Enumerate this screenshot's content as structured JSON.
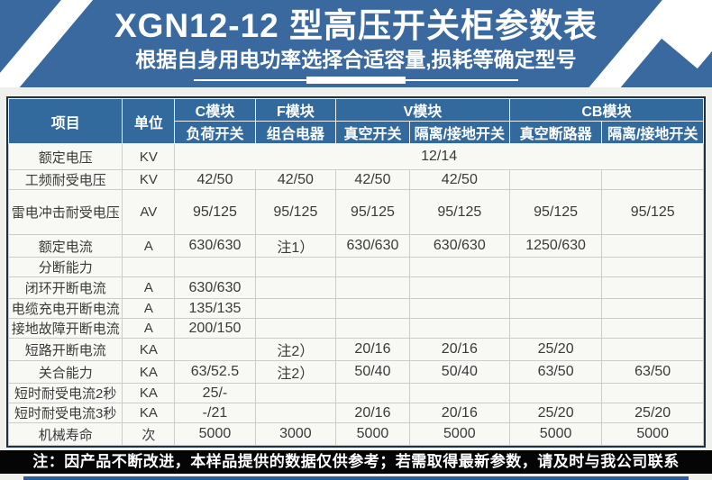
{
  "banner": {
    "title": "XGN12-12 型高压开关柜参数表",
    "subtitle": "根据自身用电功率选择合适容量,损耗等确定型号"
  },
  "table": {
    "header": {
      "item": "项目",
      "unit": "单位",
      "groups": [
        {
          "name": "C模块",
          "span": 1
        },
        {
          "name": "F模块",
          "span": 1
        },
        {
          "name": "V模块",
          "span": 2
        },
        {
          "name": "CB模块",
          "span": 2
        }
      ],
      "subcols": [
        "负荷开关",
        "组合电器",
        "真空开关",
        "隔离/接地开关",
        "真空断路器",
        "隔离/接地开关"
      ]
    },
    "rows": [
      {
        "label": "额定电压",
        "unit": "KV",
        "merged": "12/14"
      },
      {
        "label": "工频耐受电压",
        "unit": "KV",
        "values": [
          "42/50",
          "42/50",
          "42/50",
          "42/50",
          "",
          ""
        ]
      },
      {
        "label": "雷电冲击耐受电压",
        "unit": "AV",
        "values": [
          "95/125",
          "95/125",
          "95/125",
          "95/125",
          "95/125",
          "95/125"
        ]
      },
      {
        "label": "额定电流",
        "unit": "A",
        "values": [
          "630/630",
          "注1）",
          "630/630",
          "630/630",
          "1250/630",
          ""
        ]
      },
      {
        "label": "分断能力",
        "unit": "",
        "values": [
          "",
          "",
          "",
          "",
          "",
          ""
        ]
      },
      {
        "label": "闭环开断电流",
        "unit": "A",
        "values": [
          "630/630",
          "",
          "",
          "",
          "",
          ""
        ]
      },
      {
        "label": "电缆充电开断电流",
        "unit": "A",
        "values": [
          "135/135",
          "",
          "",
          "",
          "",
          ""
        ]
      },
      {
        "label": "接地故障开断电流",
        "unit": "A",
        "values": [
          "200/150",
          "",
          "",
          "",
          "",
          ""
        ]
      },
      {
        "label": "短路开断电流",
        "unit": "KA",
        "values": [
          "",
          "注2）",
          "20/16",
          "20/16",
          "25/20",
          ""
        ]
      },
      {
        "label": "关合能力",
        "unit": "KA",
        "values": [
          "63/52.5",
          "注2）",
          "50/40",
          "50/40",
          "63/50",
          "63/50"
        ]
      },
      {
        "label": "短时耐受电流2秒",
        "unit": "KA",
        "values": [
          "25/-",
          "",
          "",
          "",
          "",
          ""
        ]
      },
      {
        "label": "短时耐受电流3秒",
        "unit": "KA",
        "values": [
          "-/21",
          "",
          "20/16",
          "20/16",
          "25/20",
          "25/20"
        ]
      },
      {
        "label": "机械寿命",
        "unit": "次",
        "values": [
          "5000",
          "3000",
          "5000",
          "5000",
          "5000",
          "5000"
        ]
      }
    ]
  },
  "footer": {
    "note": "注：因产品不断改进，本样品提供的数据仅供参考；若需取得最新参数，请及时与我公司联系"
  },
  "colors": {
    "banner_blue": "#39699f",
    "header_blue": "#336a9e",
    "footer_black": "#050505",
    "bottom_line_blue": "#2b5d9c",
    "grid_gray": "#cccccc"
  }
}
